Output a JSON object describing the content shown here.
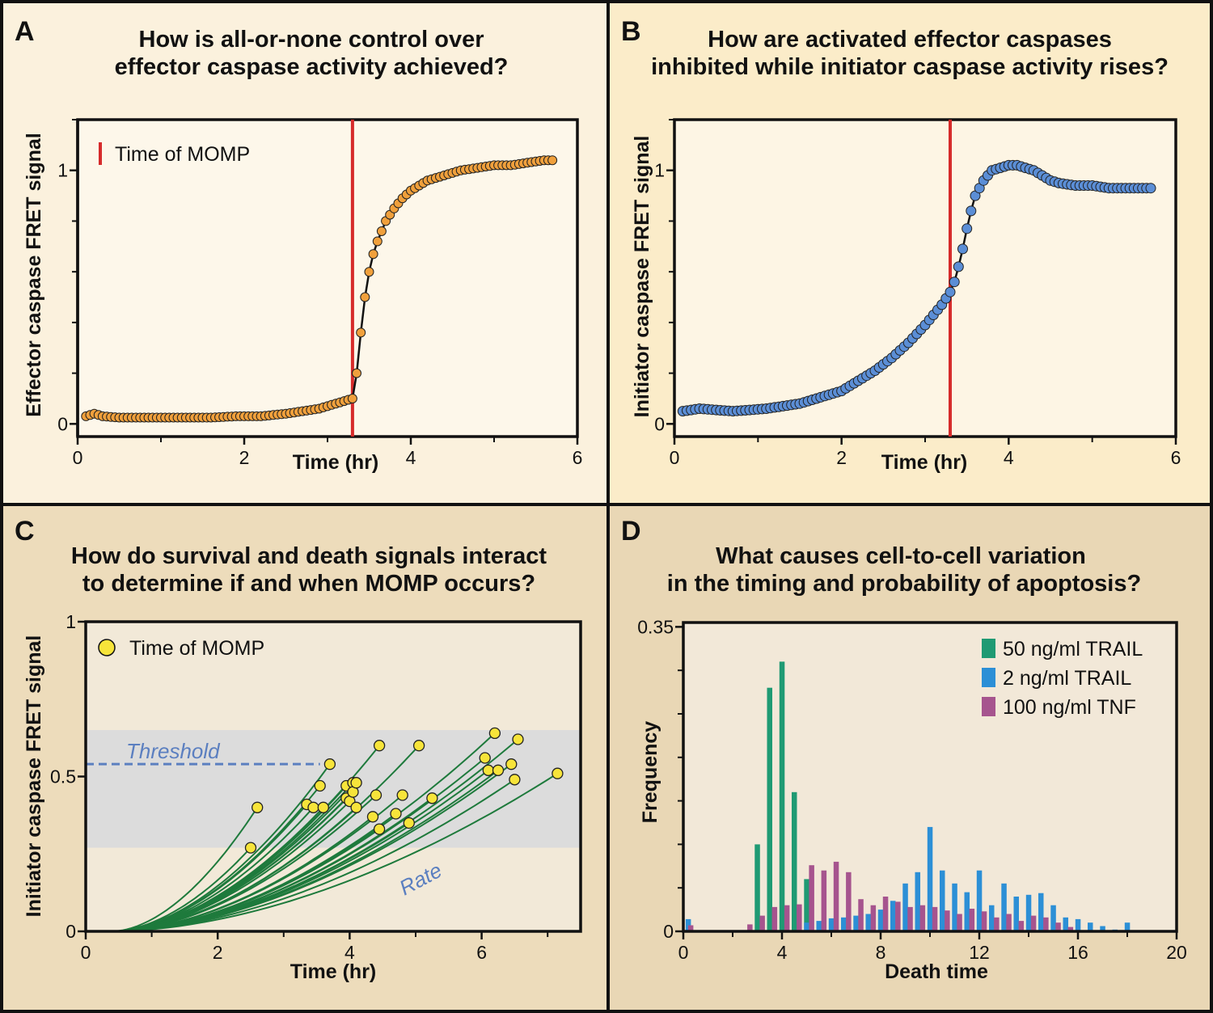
{
  "colors": {
    "panel_a_bg": "#fbf1dd",
    "panel_b_bg": "#fbecc9",
    "panel_c_bg": "#eddcbb",
    "panel_d_bg": "#e9d7b5",
    "plot_a_bg": "#fdf7ea",
    "plot_b_bg": "#fdf5e4",
    "plot_c_bg": "#f2e9d8",
    "plot_d_bg": "#f2e8d8",
    "threshold_band": "#dcdcdc",
    "momp_line": "#d62b2b",
    "effector_marker": "#f0a03c",
    "initiator_marker": "#5b8ed6",
    "trajectory": "#1e7a3c",
    "momp_dot": "#f7e43a",
    "threshold": "#5b7fc0",
    "trail50": "#1f9a73",
    "trail2": "#2c8fd6",
    "tnf100": "#a6548e"
  },
  "chart_data": [
    {
      "panel": "A",
      "type": "line",
      "title": [
        "How is all-or-none control over",
        "effector caspase activity achieved?"
      ],
      "xlabel": "Time (hr)",
      "ylabel": "Effector caspase FRET signal",
      "xlim": [
        0,
        6
      ],
      "ylim": [
        -0.05,
        1.2
      ],
      "xticks": [
        "0",
        "2",
        "4",
        "6"
      ],
      "yticks": [
        "0",
        "1"
      ],
      "legend": "Time of MOMP",
      "momp_time": 3.3,
      "series": [
        {
          "name": "Effector caspase",
          "x": [
            0.1,
            0.2,
            0.3,
            0.5,
            0.7,
            1.0,
            1.3,
            1.6,
            1.9,
            2.2,
            2.5,
            2.7,
            2.9,
            3.0,
            3.1,
            3.2,
            3.3,
            3.35,
            3.4,
            3.45,
            3.5,
            3.55,
            3.6,
            3.65,
            3.7,
            3.8,
            3.9,
            4.0,
            4.1,
            4.2,
            4.3,
            4.4,
            4.5,
            4.6,
            4.8,
            5.0,
            5.2,
            5.4,
            5.6,
            5.7
          ],
          "y": [
            0.03,
            0.04,
            0.03,
            0.025,
            0.025,
            0.025,
            0.025,
            0.025,
            0.03,
            0.03,
            0.04,
            0.05,
            0.06,
            0.07,
            0.08,
            0.09,
            0.1,
            0.2,
            0.36,
            0.5,
            0.6,
            0.67,
            0.72,
            0.76,
            0.8,
            0.85,
            0.89,
            0.92,
            0.94,
            0.96,
            0.97,
            0.98,
            0.99,
            1.0,
            1.01,
            1.02,
            1.02,
            1.03,
            1.04,
            1.04
          ]
        }
      ]
    },
    {
      "panel": "B",
      "type": "line",
      "title": [
        "How are activated effector caspases",
        "inhibited while initiator caspase activity rises?"
      ],
      "xlabel": "Time (hr)",
      "ylabel": "Initiator caspase FRET signal",
      "xlim": [
        0,
        6
      ],
      "ylim": [
        -0.05,
        1.2
      ],
      "xticks": [
        "0",
        "2",
        "4",
        "6"
      ],
      "yticks": [
        "0",
        "1"
      ],
      "momp_time": 3.3,
      "series": [
        {
          "name": "Initiator caspase",
          "x": [
            0.1,
            0.3,
            0.5,
            0.7,
            0.9,
            1.1,
            1.3,
            1.5,
            1.7,
            1.9,
            2.0,
            2.2,
            2.4,
            2.6,
            2.8,
            3.0,
            3.1,
            3.2,
            3.3,
            3.35,
            3.4,
            3.45,
            3.5,
            3.55,
            3.6,
            3.7,
            3.8,
            3.9,
            4.0,
            4.1,
            4.2,
            4.3,
            4.4,
            4.5,
            4.6,
            4.8,
            5.0,
            5.2,
            5.4,
            5.6,
            5.7
          ],
          "y": [
            0.05,
            0.06,
            0.055,
            0.05,
            0.055,
            0.06,
            0.07,
            0.08,
            0.1,
            0.12,
            0.13,
            0.17,
            0.21,
            0.26,
            0.32,
            0.39,
            0.43,
            0.47,
            0.52,
            0.56,
            0.62,
            0.69,
            0.77,
            0.84,
            0.9,
            0.96,
            1.0,
            1.01,
            1.02,
            1.02,
            1.01,
            1.0,
            0.98,
            0.96,
            0.95,
            0.94,
            0.94,
            0.93,
            0.93,
            0.93,
            0.93
          ]
        }
      ]
    },
    {
      "panel": "C",
      "type": "line",
      "title": [
        "How do survival and death signals interact",
        "to determine if and when MOMP occurs?"
      ],
      "xlabel": "Time (hr)",
      "ylabel": "Initiator caspase FRET signal",
      "xlim": [
        0,
        7.5
      ],
      "ylim": [
        0,
        1
      ],
      "xticks": [
        "0",
        "2",
        "4",
        "6"
      ],
      "yticks": [
        "0",
        "0.5",
        "1"
      ],
      "legend": "Time of MOMP",
      "threshold_label": "Threshold",
      "threshold_value": 0.54,
      "threshold_band": [
        0.27,
        0.65
      ],
      "rate_label": "Rate",
      "trajectory_start": 0.4,
      "momp_points": {
        "x": [
          2.5,
          2.6,
          3.35,
          3.45,
          3.55,
          3.6,
          3.7,
          3.95,
          3.95,
          4.0,
          4.05,
          4.05,
          4.1,
          4.1,
          4.35,
          4.45,
          4.4,
          4.45,
          4.7,
          4.8,
          4.9,
          5.05,
          5.25,
          6.05,
          6.1,
          6.2,
          6.25,
          6.45,
          6.5,
          6.55,
          7.15
        ],
        "y": [
          0.27,
          0.4,
          0.41,
          0.4,
          0.47,
          0.4,
          0.54,
          0.47,
          0.43,
          0.42,
          0.48,
          0.45,
          0.48,
          0.4,
          0.37,
          0.33,
          0.44,
          0.6,
          0.38,
          0.44,
          0.35,
          0.6,
          0.43,
          0.56,
          0.52,
          0.64,
          0.52,
          0.54,
          0.49,
          0.62,
          0.51
        ]
      }
    },
    {
      "panel": "D",
      "type": "bar",
      "title": [
        "What causes cell-to-cell variation",
        "in the timing and probability of apoptosis?"
      ],
      "xlabel": "Death time",
      "ylabel": "Frequency",
      "xlim": [
        0,
        20
      ],
      "ylim": [
        0,
        0.35
      ],
      "xticks": [
        "0",
        "4",
        "8",
        "12",
        "16",
        "20"
      ],
      "yticks": [
        "0",
        "0.35"
      ],
      "series": [
        {
          "name": "50 ng/ml TRAIL",
          "x": [
            3.0,
            3.5,
            4.0,
            4.5,
            5.0
          ],
          "values": [
            0.1,
            0.28,
            0.31,
            0.16,
            0.06
          ]
        },
        {
          "name": "2 ng/ml TRAIL",
          "x": [
            0.2,
            5.0,
            5.5,
            6.0,
            6.5,
            7.0,
            7.5,
            8.0,
            8.5,
            9.0,
            9.5,
            10.0,
            10.5,
            11.0,
            11.5,
            12.0,
            12.5,
            13.0,
            13.5,
            14.0,
            14.5,
            15.0,
            15.5,
            16.0,
            16.5,
            17.0,
            17.5,
            18.0
          ],
          "values": [
            0.014,
            0.01,
            0.012,
            0.015,
            0.016,
            0.018,
            0.02,
            0.025,
            0.035,
            0.055,
            0.068,
            0.12,
            0.07,
            0.055,
            0.045,
            0.07,
            0.03,
            0.055,
            0.04,
            0.042,
            0.044,
            0.03,
            0.016,
            0.014,
            0.01,
            0.006,
            0.002,
            0.01
          ]
        },
        {
          "name": "100 ng/ml TNF",
          "x": [
            0.3,
            2.7,
            3.2,
            3.7,
            4.2,
            4.7,
            5.2,
            5.7,
            6.2,
            6.7,
            7.2,
            7.7,
            8.2,
            8.7,
            9.2,
            9.7,
            10.2,
            10.7,
            11.2,
            11.7,
            12.2,
            12.7,
            13.2,
            13.7,
            14.2,
            14.7,
            15.2,
            15.7
          ],
          "values": [
            0.007,
            0.008,
            0.018,
            0.028,
            0.03,
            0.031,
            0.076,
            0.07,
            0.08,
            0.068,
            0.037,
            0.03,
            0.04,
            0.034,
            0.028,
            0.03,
            0.028,
            0.024,
            0.02,
            0.026,
            0.023,
            0.016,
            0.02,
            0.012,
            0.018,
            0.016,
            0.01,
            0.005
          ]
        }
      ]
    }
  ]
}
